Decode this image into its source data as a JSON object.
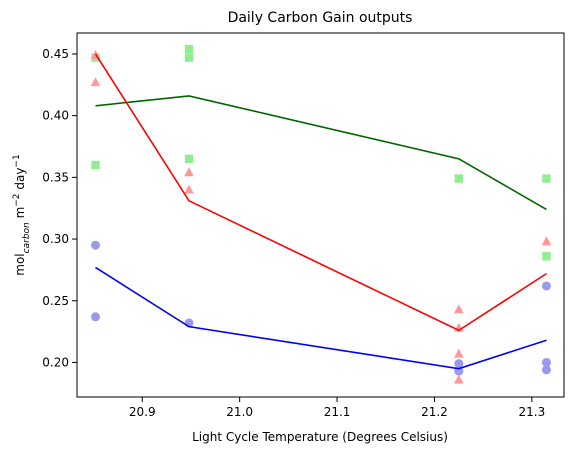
{
  "chart_data": {
    "type": "scatter",
    "title": "Daily Carbon Gain outputs",
    "xlabel": "Light Cycle Temperature (Degrees Celsius)",
    "ylabel": {
      "base": "mol",
      "sub": "carbon",
      "rest": " m",
      "sup1": "−2",
      "rest2": " day",
      "sup2": "−1"
    },
    "xlim": [
      20.833,
      21.333
    ],
    "ylim": [
      0.172,
      0.467
    ],
    "xticks": [
      20.9,
      21.0,
      21.1,
      21.2,
      21.3
    ],
    "xtick_labels": [
      "20.9",
      "21.0",
      "21.1",
      "21.2",
      "21.3"
    ],
    "yticks": [
      0.2,
      0.25,
      0.3,
      0.35,
      0.4,
      0.45
    ],
    "ytick_labels": [
      "0.20",
      "0.25",
      "0.30",
      "0.35",
      "0.40",
      "0.45"
    ],
    "grid": false,
    "series": [
      {
        "marker": "square",
        "point_color": "#90ee90",
        "line_color": "#006400",
        "points": [
          [
            20.852,
            0.447
          ],
          [
            20.852,
            0.36
          ],
          [
            20.948,
            0.454
          ],
          [
            20.948,
            0.447
          ],
          [
            20.948,
            0.365
          ],
          [
            21.225,
            0.349
          ],
          [
            21.315,
            0.349
          ],
          [
            21.315,
            0.286
          ]
        ],
        "trend": [
          [
            20.852,
            0.408
          ],
          [
            20.948,
            0.416
          ],
          [
            21.225,
            0.365
          ],
          [
            21.315,
            0.324
          ]
        ]
      },
      {
        "marker": "triangle",
        "point_color": "#ff9999",
        "line_color": "#ff0000",
        "points": [
          [
            20.852,
            0.449
          ],
          [
            20.852,
            0.427
          ],
          [
            20.948,
            0.354
          ],
          [
            20.948,
            0.34
          ],
          [
            21.225,
            0.243
          ],
          [
            21.225,
            0.228
          ],
          [
            21.225,
            0.207
          ],
          [
            21.225,
            0.186
          ],
          [
            21.315,
            0.298
          ]
        ],
        "trend": [
          [
            20.852,
            0.45
          ],
          [
            20.948,
            0.331
          ],
          [
            21.225,
            0.226
          ],
          [
            21.315,
            0.272
          ]
        ]
      },
      {
        "marker": "circle",
        "point_color": "#9999ee",
        "line_color": "#0000ff",
        "points": [
          [
            20.852,
            0.295
          ],
          [
            20.852,
            0.237
          ],
          [
            20.948,
            0.232
          ],
          [
            21.225,
            0.199
          ],
          [
            21.225,
            0.193
          ],
          [
            21.315,
            0.262
          ],
          [
            21.315,
            0.2
          ],
          [
            21.315,
            0.194
          ]
        ],
        "trend": [
          [
            20.852,
            0.277
          ],
          [
            20.948,
            0.229
          ],
          [
            21.225,
            0.195
          ],
          [
            21.315,
            0.218
          ]
        ]
      }
    ]
  }
}
